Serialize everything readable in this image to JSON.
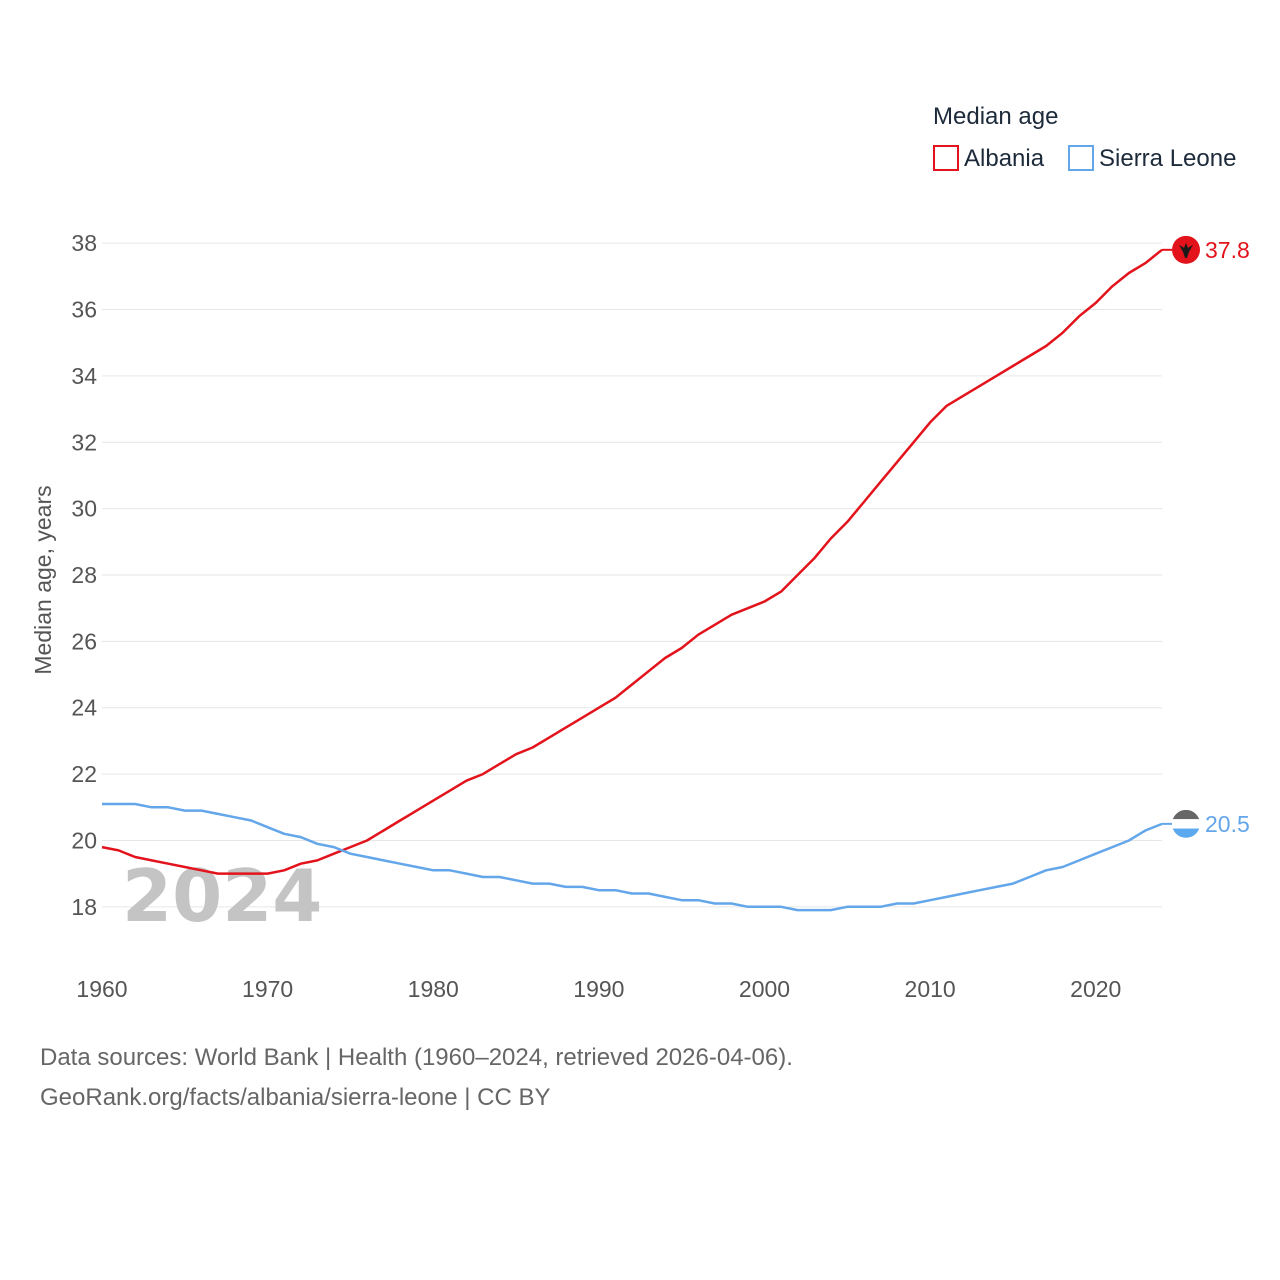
{
  "chart_data": {
    "type": "line",
    "legend_title": "Median age",
    "ylabel": "Median age, years",
    "xlabel": "",
    "ylim": [
      17,
      39
    ],
    "xlim": [
      1960,
      2024
    ],
    "yticks": [
      18,
      20,
      22,
      24,
      26,
      28,
      30,
      32,
      34,
      36,
      38
    ],
    "xticks": [
      1960,
      1970,
      1980,
      1990,
      2000,
      2010,
      2020
    ],
    "current_year_label": "2024",
    "grid": true,
    "legend_position": "top-right",
    "x": [
      1960,
      1961,
      1962,
      1963,
      1964,
      1965,
      1966,
      1967,
      1968,
      1969,
      1970,
      1971,
      1972,
      1973,
      1974,
      1975,
      1976,
      1977,
      1978,
      1979,
      1980,
      1981,
      1982,
      1983,
      1984,
      1985,
      1986,
      1987,
      1988,
      1989,
      1990,
      1991,
      1992,
      1993,
      1994,
      1995,
      1996,
      1997,
      1998,
      1999,
      2000,
      2001,
      2002,
      2003,
      2004,
      2005,
      2006,
      2007,
      2008,
      2009,
      2010,
      2011,
      2012,
      2013,
      2014,
      2015,
      2016,
      2017,
      2018,
      2019,
      2020,
      2021,
      2022,
      2023,
      2024
    ],
    "series": [
      {
        "name": "Albania",
        "color": "#e3131c",
        "end_label": "37.8",
        "values": [
          19.8,
          19.7,
          19.5,
          19.4,
          19.3,
          19.2,
          19.1,
          19.0,
          19.0,
          19.0,
          19.0,
          19.1,
          19.3,
          19.4,
          19.6,
          19.8,
          20.0,
          20.3,
          20.6,
          20.9,
          21.2,
          21.5,
          21.8,
          22.0,
          22.3,
          22.6,
          22.8,
          23.1,
          23.4,
          23.7,
          24.0,
          24.3,
          24.7,
          25.1,
          25.5,
          25.8,
          26.2,
          26.5,
          26.8,
          27.0,
          27.2,
          27.5,
          28.0,
          28.5,
          29.1,
          29.6,
          30.2,
          30.8,
          31.4,
          32.0,
          32.6,
          33.1,
          33.4,
          33.7,
          34.0,
          34.3,
          34.6,
          34.9,
          35.3,
          35.8,
          36.2,
          36.7,
          37.1,
          37.4,
          37.8
        ]
      },
      {
        "name": "Sierra Leone",
        "color": "#63a6ea",
        "end_label": "20.5",
        "values": [
          21.1,
          21.1,
          21.1,
          21.0,
          21.0,
          20.9,
          20.9,
          20.8,
          20.7,
          20.6,
          20.4,
          20.2,
          20.1,
          19.9,
          19.8,
          19.6,
          19.5,
          19.4,
          19.3,
          19.2,
          19.1,
          19.1,
          19.0,
          18.9,
          18.9,
          18.8,
          18.7,
          18.7,
          18.6,
          18.6,
          18.5,
          18.5,
          18.4,
          18.4,
          18.3,
          18.2,
          18.2,
          18.1,
          18.1,
          18.0,
          18.0,
          18.0,
          17.9,
          17.9,
          17.9,
          18.0,
          18.0,
          18.0,
          18.1,
          18.1,
          18.2,
          18.3,
          18.4,
          18.5,
          18.6,
          18.7,
          18.9,
          19.1,
          19.2,
          19.4,
          19.6,
          19.8,
          20.0,
          20.3,
          20.5
        ]
      }
    ],
    "flag_icons": [
      "albania-flag-icon",
      "sierra-leone-flag-icon"
    ]
  },
  "source": {
    "line1": "Data sources: World Bank | Health (1960–2024, retrieved 2026-04-06).",
    "line2": "GeoRank.org/facts/albania/sierra-leone | CC BY"
  }
}
